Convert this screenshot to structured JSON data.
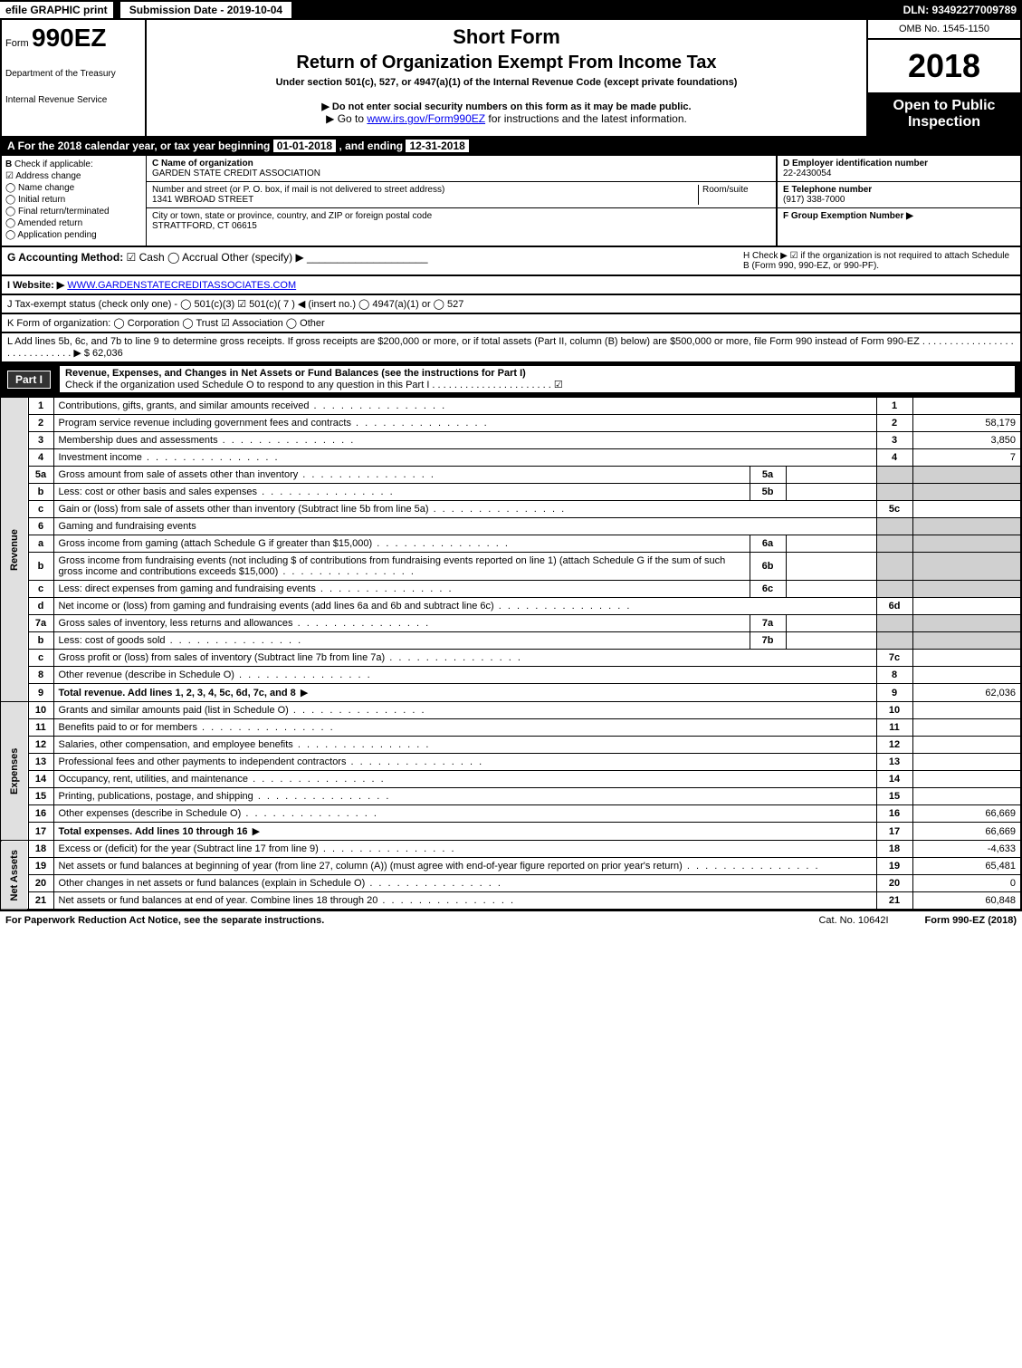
{
  "top": {
    "efile": "efile GRAPHIC print",
    "submission": "Submission Date - 2019-10-04",
    "dln": "DLN: 93492277009789"
  },
  "header": {
    "form_prefix": "Form",
    "form_no": "990EZ",
    "short_form": "Short Form",
    "title": "Return of Organization Exempt From Income Tax",
    "under": "Under section 501(c), 527, or 4947(a)(1) of the Internal Revenue Code (except private foundations)",
    "donot": "▶ Do not enter social security numbers on this form as it may be made public.",
    "goto_pre": "▶ Go to ",
    "goto_link": "www.irs.gov/Form990EZ",
    "goto_post": " for instructions and the latest information.",
    "dept1": "Department of the Treasury",
    "dept2": "Internal Revenue Service",
    "omb": "OMB No. 1545-1150",
    "year": "2018",
    "open": "Open to Public Inspection"
  },
  "row_a": {
    "label": "A",
    "text_pre": "For the 2018 calendar year, or tax year beginning ",
    "begin": "01-01-2018",
    "text_mid": " , and ending ",
    "end": "12-31-2018"
  },
  "section_b": {
    "label": "B",
    "check": "Check if applicable:",
    "items": [
      "Address change",
      "Name change",
      "Initial return",
      "Final return/terminated",
      "Amended return",
      "Application pending"
    ]
  },
  "section_c": {
    "c_label": "C Name of organization",
    "c_value": "GARDEN STATE CREDIT ASSOCIATION",
    "street_label": "Number and street (or P. O. box, if mail is not delivered to street address)",
    "room_label": "Room/suite",
    "street_value": "1341 WBROAD STREET",
    "city_label": "City or town, state or province, country, and ZIP or foreign postal code",
    "city_value": "STRATTFORD, CT 06615"
  },
  "section_def": {
    "d_label": "D Employer identification number",
    "d_value": "22-2430054",
    "e_label": "E Telephone number",
    "e_value": "(917) 338-7000",
    "f_label": "F Group Exemption Number  ▶"
  },
  "row_g": {
    "g_label": "G Accounting Method:",
    "g_opts": "☑ Cash   ◯ Accrual   Other (specify) ▶",
    "h_label": "H   Check ▶ ☑ if the organization is not required to attach Schedule B (Form 990, 990-EZ, or 990-PF)."
  },
  "row_i": {
    "label": "I Website: ▶",
    "value": "WWW.GARDENSTATECREDITASSOCIATES.COM"
  },
  "row_j": {
    "text": "J Tax-exempt status (check only one) - ◯ 501(c)(3)  ☑ 501(c)( 7 ) ◀ (insert no.)  ◯ 4947(a)(1) or  ◯ 527"
  },
  "row_k": {
    "text": "K Form of organization:   ◯ Corporation   ◯ Trust   ☑ Association   ◯ Other"
  },
  "row_l": {
    "text": "L Add lines 5b, 6c, and 7b to line 9 to determine gross receipts. If gross receipts are $200,000 or more, or if total assets (Part II, column (B) below) are $500,000 or more, file Form 990 instead of Form 990-EZ  .  .  .  .  .  .  .  .  .  .  .  .  .  .  .  .  .  .  .  .  .  .  .  .  .  .  .  .  .  ▶ $ 62,036"
  },
  "part1": {
    "label": "Part I",
    "title": "Revenue, Expenses, and Changes in Net Assets or Fund Balances (see the instructions for Part I)",
    "check": "Check if the organization used Schedule O to respond to any question in this Part I  .  .  .  .  .  .  .  .  .  .  .  .  .  .  .  .  .  .  .  .  .  .   ☑"
  },
  "groups": {
    "revenue": "Revenue",
    "expenses": "Expenses",
    "netassets": "Net Assets"
  },
  "lines": [
    {
      "n": "1",
      "desc": "Contributions, gifts, grants, and similar amounts received",
      "box": "1",
      "amt": ""
    },
    {
      "n": "2",
      "desc": "Program service revenue including government fees and contracts",
      "box": "2",
      "amt": "58,179"
    },
    {
      "n": "3",
      "desc": "Membership dues and assessments",
      "box": "3",
      "amt": "3,850"
    },
    {
      "n": "4",
      "desc": "Investment income",
      "box": "4",
      "amt": "7"
    },
    {
      "n": "5a",
      "desc": "Gross amount from sale of assets other than inventory",
      "sub": "5a",
      "subamt": ""
    },
    {
      "n": "b",
      "desc": "Less: cost or other basis and sales expenses",
      "sub": "5b",
      "subamt": ""
    },
    {
      "n": "c",
      "desc": "Gain or (loss) from sale of assets other than inventory (Subtract line 5b from line 5a)",
      "box": "5c",
      "amt": ""
    },
    {
      "n": "6",
      "desc": "Gaming and fundraising events",
      "header": true
    },
    {
      "n": "a",
      "desc": "Gross income from gaming (attach Schedule G if greater than $15,000)",
      "sub": "6a",
      "subamt": ""
    },
    {
      "n": "b",
      "desc": "Gross income from fundraising events (not including $                of contributions from fundraising events reported on line 1) (attach Schedule G if the sum of such gross income and contributions exceeds $15,000)",
      "sub": "6b",
      "subamt": ""
    },
    {
      "n": "c",
      "desc": "Less: direct expenses from gaming and fundraising events",
      "sub": "6c",
      "subamt": ""
    },
    {
      "n": "d",
      "desc": "Net income or (loss) from gaming and fundraising events (add lines 6a and 6b and subtract line 6c)",
      "box": "6d",
      "amt": ""
    },
    {
      "n": "7a",
      "desc": "Gross sales of inventory, less returns and allowances",
      "sub": "7a",
      "subamt": ""
    },
    {
      "n": "b",
      "desc": "Less: cost of goods sold",
      "sub": "7b",
      "subamt": ""
    },
    {
      "n": "c",
      "desc": "Gross profit or (loss) from sales of inventory (Subtract line 7b from line 7a)",
      "box": "7c",
      "amt": ""
    },
    {
      "n": "8",
      "desc": "Other revenue (describe in Schedule O)",
      "box": "8",
      "amt": ""
    },
    {
      "n": "9",
      "desc": "Total revenue. Add lines 1, 2, 3, 4, 5c, 6d, 7c, and 8",
      "box": "9",
      "amt": "62,036",
      "bold": true,
      "arrow": true
    }
  ],
  "exp_lines": [
    {
      "n": "10",
      "desc": "Grants and similar amounts paid (list in Schedule O)",
      "box": "10",
      "amt": ""
    },
    {
      "n": "11",
      "desc": "Benefits paid to or for members",
      "box": "11",
      "amt": ""
    },
    {
      "n": "12",
      "desc": "Salaries, other compensation, and employee benefits",
      "box": "12",
      "amt": ""
    },
    {
      "n": "13",
      "desc": "Professional fees and other payments to independent contractors",
      "box": "13",
      "amt": ""
    },
    {
      "n": "14",
      "desc": "Occupancy, rent, utilities, and maintenance",
      "box": "14",
      "amt": ""
    },
    {
      "n": "15",
      "desc": "Printing, publications, postage, and shipping",
      "box": "15",
      "amt": ""
    },
    {
      "n": "16",
      "desc": "Other expenses (describe in Schedule O)",
      "box": "16",
      "amt": "66,669"
    },
    {
      "n": "17",
      "desc": "Total expenses. Add lines 10 through 16",
      "box": "17",
      "amt": "66,669",
      "bold": true,
      "arrow": true
    }
  ],
  "na_lines": [
    {
      "n": "18",
      "desc": "Excess or (deficit) for the year (Subtract line 17 from line 9)",
      "box": "18",
      "amt": "-4,633"
    },
    {
      "n": "19",
      "desc": "Net assets or fund balances at beginning of year (from line 27, column (A)) (must agree with end-of-year figure reported on prior year's return)",
      "box": "19",
      "amt": "65,481"
    },
    {
      "n": "20",
      "desc": "Other changes in net assets or fund balances (explain in Schedule O)",
      "box": "20",
      "amt": "0"
    },
    {
      "n": "21",
      "desc": "Net assets or fund balances at end of year. Combine lines 18 through 20",
      "box": "21",
      "amt": "60,848"
    }
  ],
  "footer": {
    "pra": "For Paperwork Reduction Act Notice, see the separate instructions.",
    "cat": "Cat. No. 10642I",
    "form": "Form 990-EZ (2018)"
  }
}
